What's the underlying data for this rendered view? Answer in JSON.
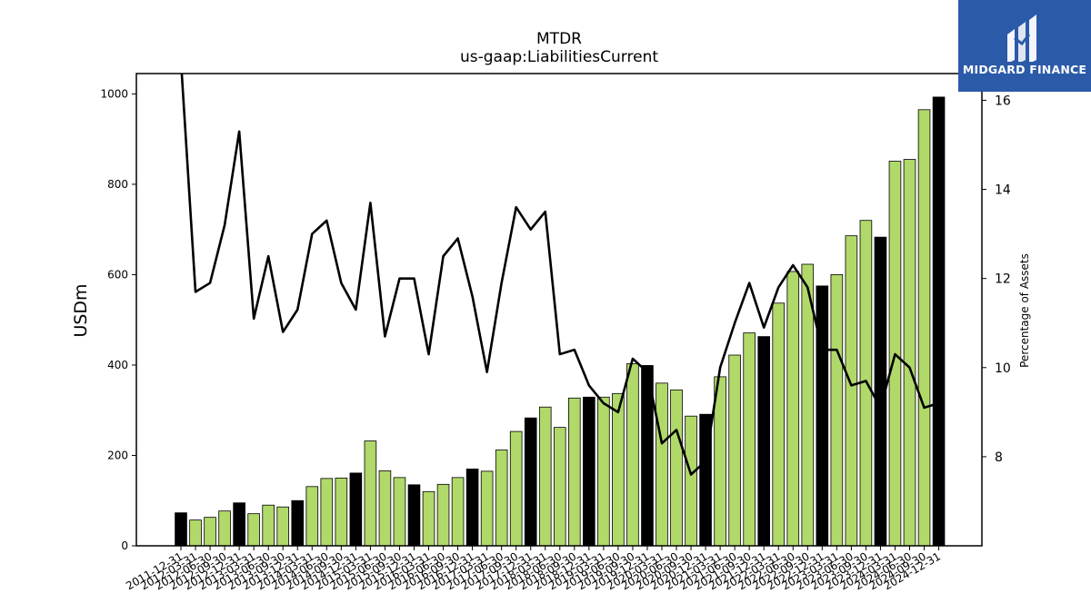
{
  "chart_data": {
    "type": "bar",
    "title": "MTDR",
    "subtitle": "us-gaap:LiabilitiesCurrent",
    "ylabel": "USDm",
    "y2label": "Percentage of Assets",
    "ylim": [
      0,
      1045
    ],
    "y2lim": [
      6.0,
      16.6
    ],
    "yticks": [
      0,
      200,
      400,
      600,
      800,
      1000
    ],
    "y2ticks": [
      8,
      10,
      12,
      14,
      16
    ],
    "grid": false,
    "colors": {
      "q4_bar": "#000000",
      "bar": "#b0d96a",
      "line": "#000000"
    },
    "categories": [
      "2011-12-31",
      "2012-03-31",
      "2012-06-30",
      "2012-09-30",
      "2012-12-31",
      "2013-03-31",
      "2013-06-30",
      "2013-09-30",
      "2013-12-31",
      "2014-03-31",
      "2014-06-30",
      "2014-09-30",
      "2014-12-31",
      "2015-03-31",
      "2015-06-30",
      "2015-09-30",
      "2015-12-31",
      "2016-03-31",
      "2016-06-30",
      "2016-09-30",
      "2016-12-31",
      "2017-03-31",
      "2017-06-30",
      "2017-09-30",
      "2017-12-31",
      "2018-03-31",
      "2018-06-30",
      "2018-09-30",
      "2018-12-31",
      "2019-03-31",
      "2019-06-30",
      "2019-09-30",
      "2019-12-31",
      "2020-03-31",
      "2020-06-30",
      "2020-09-30",
      "2020-12-31",
      "2021-03-31",
      "2021-06-30",
      "2021-09-30",
      "2021-12-31",
      "2022-03-31",
      "2022-06-30",
      "2022-09-30",
      "2022-12-31",
      "2023-03-31",
      "2023-06-30",
      "2023-09-30",
      "2023-12-31",
      "2024-03-31",
      "2024-06-30",
      "2024-09-30",
      "2024-12-31"
    ],
    "values": [
      73,
      57,
      63,
      77,
      95,
      71,
      90,
      86,
      100,
      131,
      149,
      150,
      161,
      232,
      166,
      151,
      135,
      120,
      136,
      151,
      170,
      165,
      212,
      253,
      283,
      307,
      262,
      327,
      329,
      329,
      337,
      403,
      399,
      360,
      345,
      287,
      291,
      374,
      422,
      471,
      463,
      537,
      607,
      623,
      575,
      600,
      686,
      720,
      683,
      851,
      855,
      965,
      993
    ],
    "pct_assets": [
      16.9,
      11.7,
      11.9,
      13.2,
      15.3,
      11.1,
      12.5,
      10.8,
      11.3,
      13.0,
      13.3,
      11.9,
      11.3,
      13.7,
      10.7,
      12.0,
      12.0,
      10.3,
      12.5,
      12.9,
      11.6,
      9.9,
      11.9,
      13.6,
      13.1,
      13.5,
      10.3,
      10.4,
      9.6,
      9.2,
      9.0,
      10.2,
      9.9,
      8.3,
      8.6,
      7.6,
      7.9,
      10.0,
      11.0,
      11.9,
      10.9,
      11.8,
      12.3,
      11.8,
      10.4,
      10.4,
      9.6,
      9.7,
      9.1,
      10.3,
      10.0,
      9.1,
      9.2
    ]
  },
  "logo": {
    "text": "MIDGARD FINANCE"
  }
}
